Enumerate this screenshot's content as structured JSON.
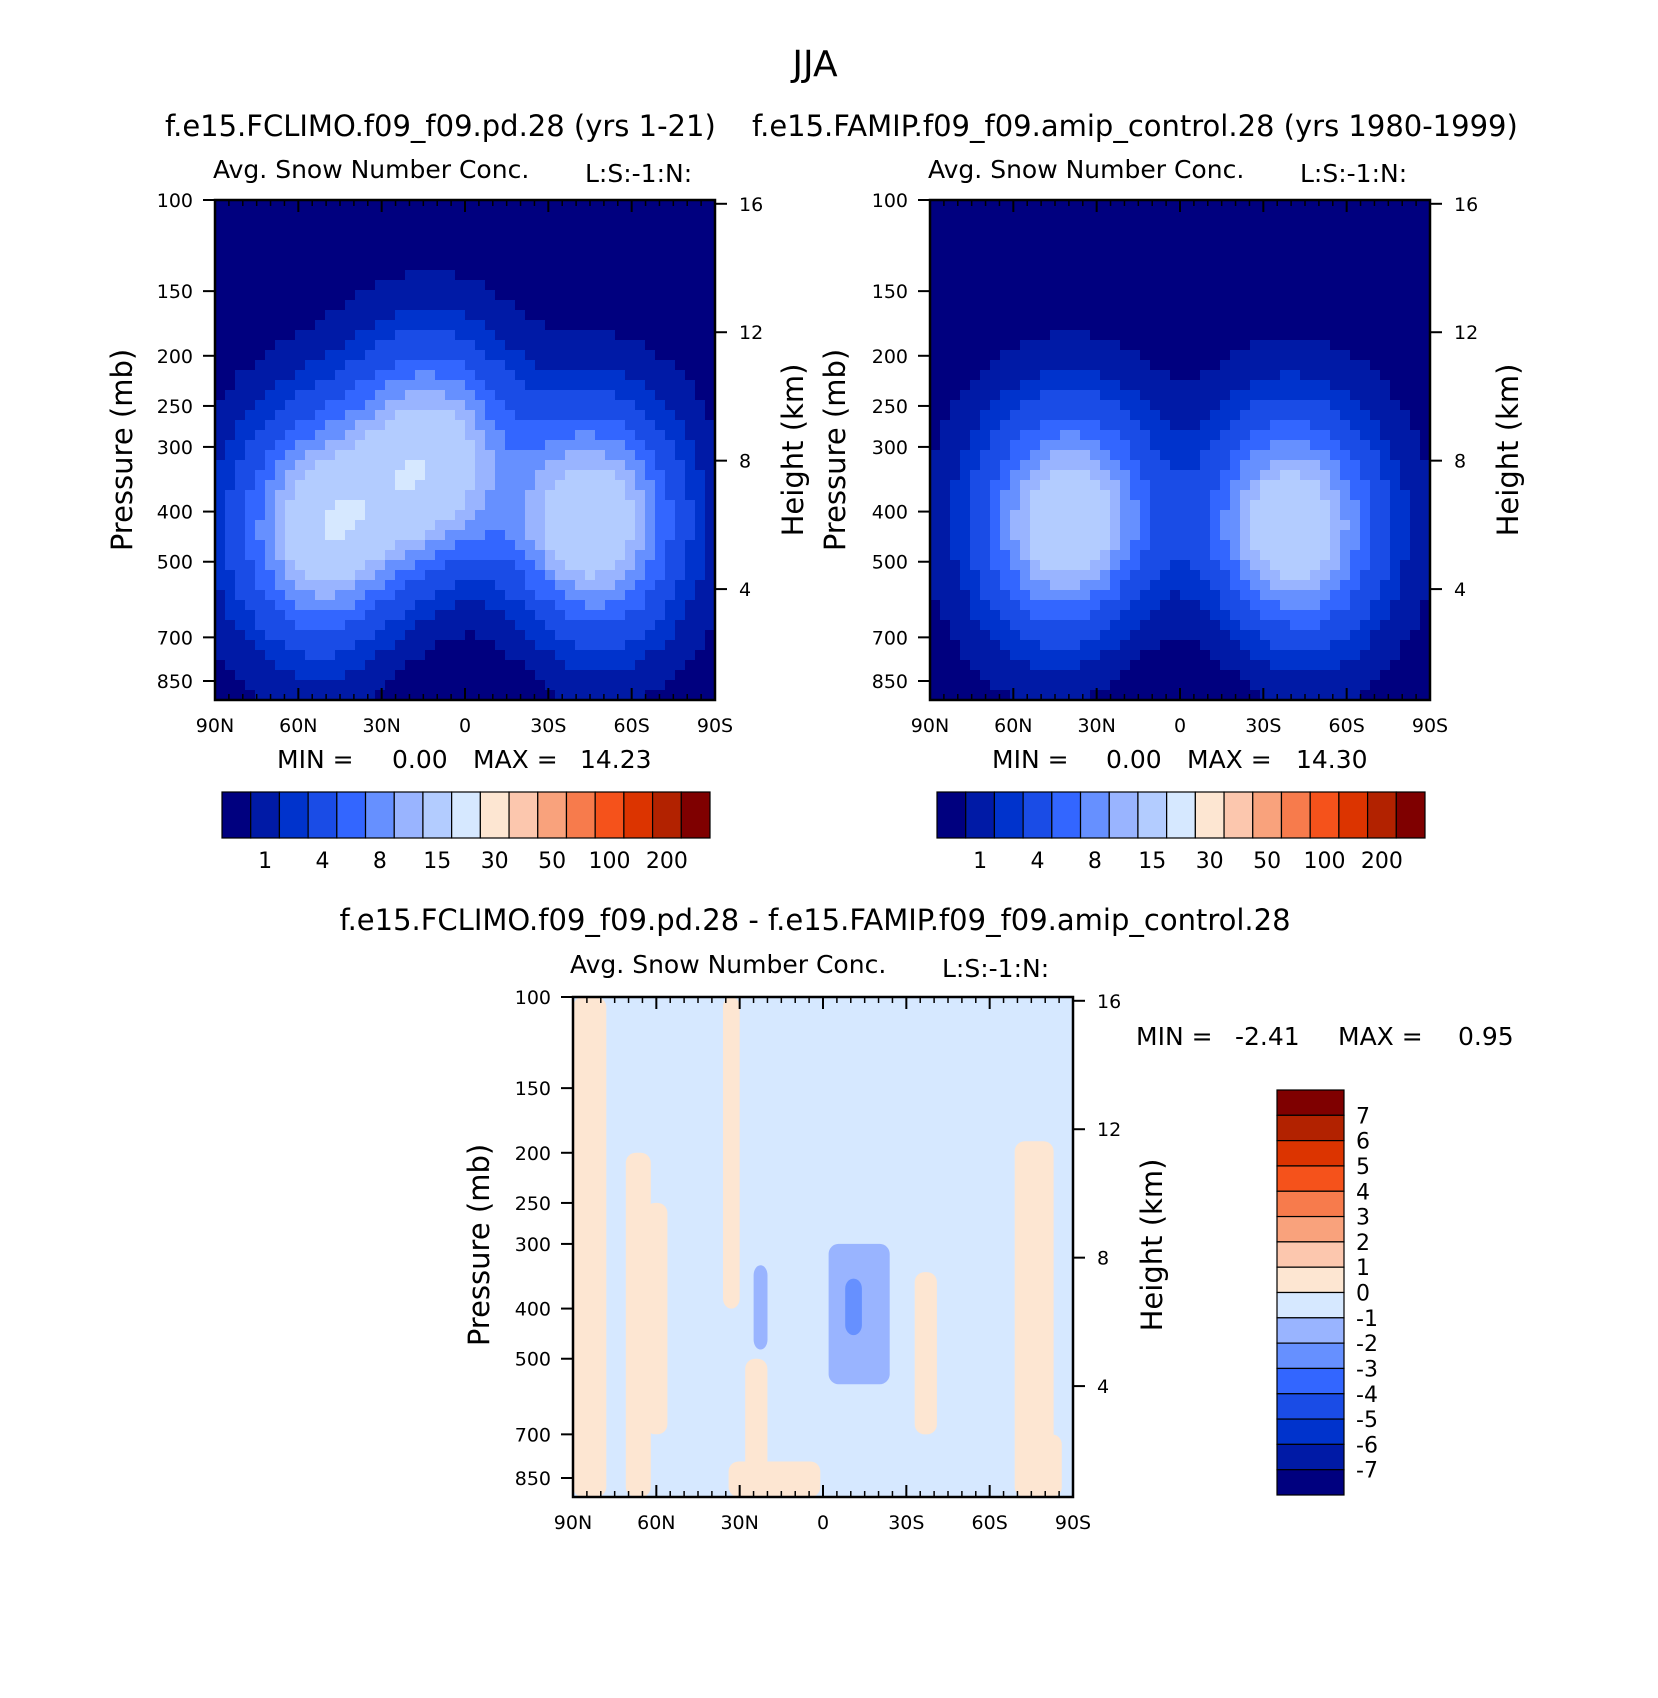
{
  "figure": {
    "title": "JJA"
  },
  "palettes": {
    "sequential": [
      "#00007f",
      "#001aa6",
      "#0033cc",
      "#1a4ce6",
      "#3366ff",
      "#6690ff",
      "#99b4ff",
      "#b3ccff",
      "#d6e8ff",
      "#fde6d2",
      "#fcc7ae",
      "#f9a27c",
      "#f77b4c",
      "#f5521b",
      "#dc3400",
      "#b22200",
      "#7f0000"
    ],
    "difference": [
      "#00007f",
      "#001aa6",
      "#0033cc",
      "#1a4ce6",
      "#3366ff",
      "#6690ff",
      "#99b4ff",
      "#d6e8ff",
      "#fde6d2",
      "#fcc7ae",
      "#f9a27c",
      "#f77b4c",
      "#f5521b",
      "#dc3400",
      "#b22200",
      "#7f0000"
    ]
  },
  "chart_data": [
    {
      "type": "heatmap",
      "title": "f.e15.FCLIMO.f09_f09.pd.28 (yrs 1-21)",
      "subtitle": "Avg. Snow Number Conc.",
      "corner_label": "L:S:-1:N:",
      "ylabel": "Pressure (mb)",
      "y2label": "Height (km)",
      "x_ticks": [
        "90N",
        "60N",
        "30N",
        "0",
        "30S",
        "60S",
        "90S"
      ],
      "y_ticks": [
        "100",
        "150",
        "200",
        "250",
        "300",
        "400",
        "500",
        "700",
        "850"
      ],
      "y2_ticks": [
        "16",
        "12",
        "8",
        "4"
      ],
      "stats": {
        "min_label": "MIN =",
        "min": "0.00",
        "max_label": "MAX =",
        "max": "14.23"
      },
      "colorbar_labels": [
        "1",
        "4",
        "8",
        "15",
        "30",
        "50",
        "100",
        "200"
      ],
      "contour_levels": [
        0.25,
        1,
        2,
        4,
        6,
        8,
        10,
        15
      ],
      "cores": [
        {
          "lat": 50,
          "pressure": 430,
          "peak": 14.0
        },
        {
          "lat": 13,
          "pressure": 320,
          "peak": 13.8
        },
        {
          "lat": -45,
          "pressure": 420,
          "peak": 14.23
        }
      ]
    },
    {
      "type": "heatmap",
      "title": "f.e15.FAMIP.f09_f09.amip_control.28 (yrs 1980-1999)",
      "subtitle": "Avg. Snow Number Conc.",
      "corner_label": "L:S:-1:N:",
      "ylabel": "Pressure (mb)",
      "y2label": "Height (km)",
      "x_ticks": [
        "90N",
        "60N",
        "30N",
        "0",
        "30S",
        "60S",
        "90S"
      ],
      "y_ticks": [
        "100",
        "150",
        "200",
        "250",
        "300",
        "400",
        "500",
        "700",
        "850"
      ],
      "y2_ticks": [
        "16",
        "12",
        "8",
        "4"
      ],
      "stats": {
        "min_label": "MIN =",
        "min": "0.00",
        "max_label": "MAX =",
        "max": "14.30"
      },
      "colorbar_labels": [
        "1",
        "4",
        "8",
        "15",
        "30",
        "50",
        "100",
        "200"
      ],
      "contour_levels": [
        0.25,
        1,
        2,
        4,
        6,
        8,
        10,
        15
      ],
      "cores": [
        {
          "lat": 40,
          "pressure": 420,
          "peak": 14.3
        },
        {
          "lat": -40,
          "pressure": 430,
          "peak": 14.0
        }
      ]
    },
    {
      "type": "heatmap",
      "title": "f.e15.FCLIMO.f09_f09.pd.28 - f.e15.FAMIP.f09_f09.amip_control.28",
      "subtitle": "Avg. Snow Number Conc.",
      "corner_label": "L:S:-1:N:",
      "ylabel": "Pressure (mb)",
      "y2label": "Height (km)",
      "x_ticks": [
        "90N",
        "60N",
        "30N",
        "0",
        "30S",
        "60S",
        "90S"
      ],
      "y_ticks": [
        "100",
        "150",
        "200",
        "250",
        "300",
        "400",
        "500",
        "700",
        "850"
      ],
      "y2_ticks": [
        "16",
        "12",
        "8",
        "4"
      ],
      "stats": {
        "min_label": "MIN =",
        "min": "-2.41",
        "max_label": "MAX =",
        "max": "0.95"
      },
      "colorbar_labels": [
        "7",
        "6",
        "5",
        "4",
        "3",
        "2",
        "1",
        "0",
        "-1",
        "-2",
        "-3",
        "-4",
        "-5",
        "-6",
        "-7"
      ]
    }
  ]
}
